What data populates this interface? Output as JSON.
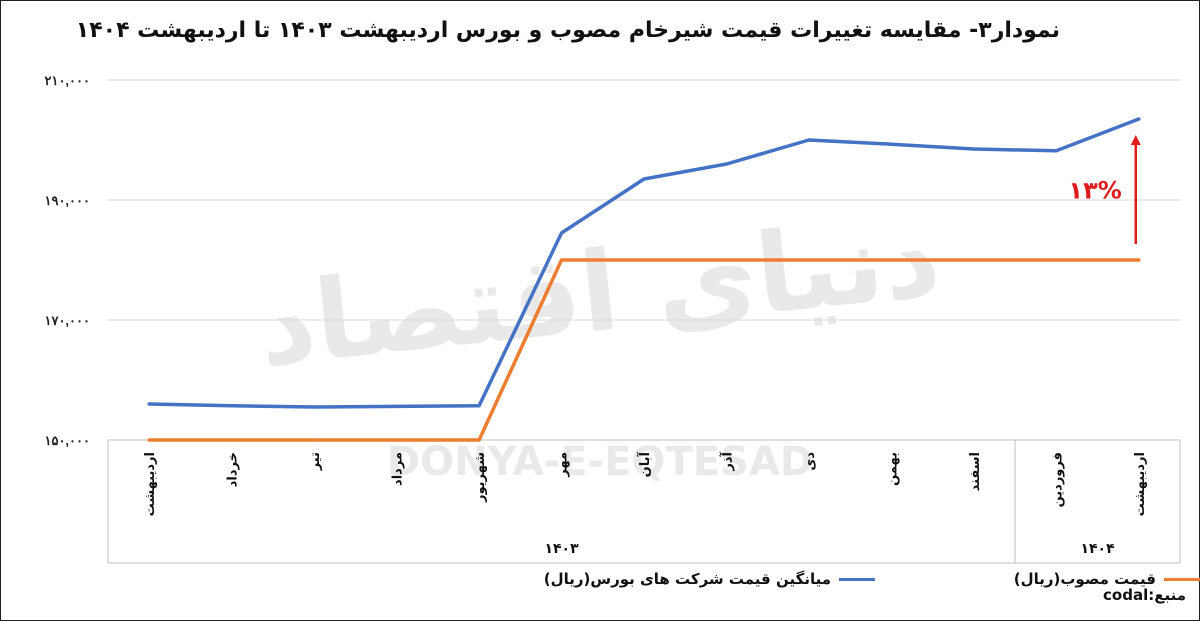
{
  "chart_data": {
    "type": "line",
    "title": "نمودار۳- مقایسه تغییرات قیمت شیرخام مصوب و بورس اردیبهشت ۱۴۰۳ تا اردیبهشت ۱۴۰۴",
    "categories": [
      "اردیبهشت",
      "خرداد",
      "تیر",
      "مرداد",
      "شهریور",
      "مهر",
      "آبان",
      "آذر",
      "دی",
      "بهمن",
      "اسفند",
      "فروردین",
      "اردیبهشت"
    ],
    "category_groups": [
      {
        "label": "۱۴۰۳",
        "count": 11
      },
      {
        "label": "۱۴۰۴",
        "count": 2
      }
    ],
    "series": [
      {
        "name": "میانگین قیمت شرکت های بورس(ریال)",
        "color": "#4472c4",
        "values": [
          156000,
          155700,
          155500,
          155600,
          155700,
          184500,
          193500,
          196000,
          200000,
          199300,
          198500,
          198200,
          203500
        ]
      },
      {
        "name": "قیمت مصوب(ریال)",
        "color": "#ed7d31",
        "values": [
          150000,
          150000,
          150000,
          150000,
          150000,
          180000,
          180000,
          180000,
          180000,
          180000,
          180000,
          180000,
          180000
        ]
      }
    ],
    "ylim": [
      150000,
      210000
    ],
    "yticks": [
      150000,
      170000,
      190000,
      210000
    ],
    "ytick_labels": [
      "۱۵۰,۰۰۰",
      "۱۷۰,۰۰۰",
      "۱۹۰,۰۰۰",
      "۲۱۰,۰۰۰"
    ],
    "grid": true,
    "legend_position": "bottom",
    "annotation": {
      "text": "۱۳%",
      "color": "#e01b1b",
      "category_index": 12,
      "from": 180000,
      "to": 201500
    }
  },
  "watermark": {
    "persian": "دنیای اقتصاد",
    "latin": "DONYA-E-EQTESAD"
  },
  "source_text": "منبع:codal"
}
